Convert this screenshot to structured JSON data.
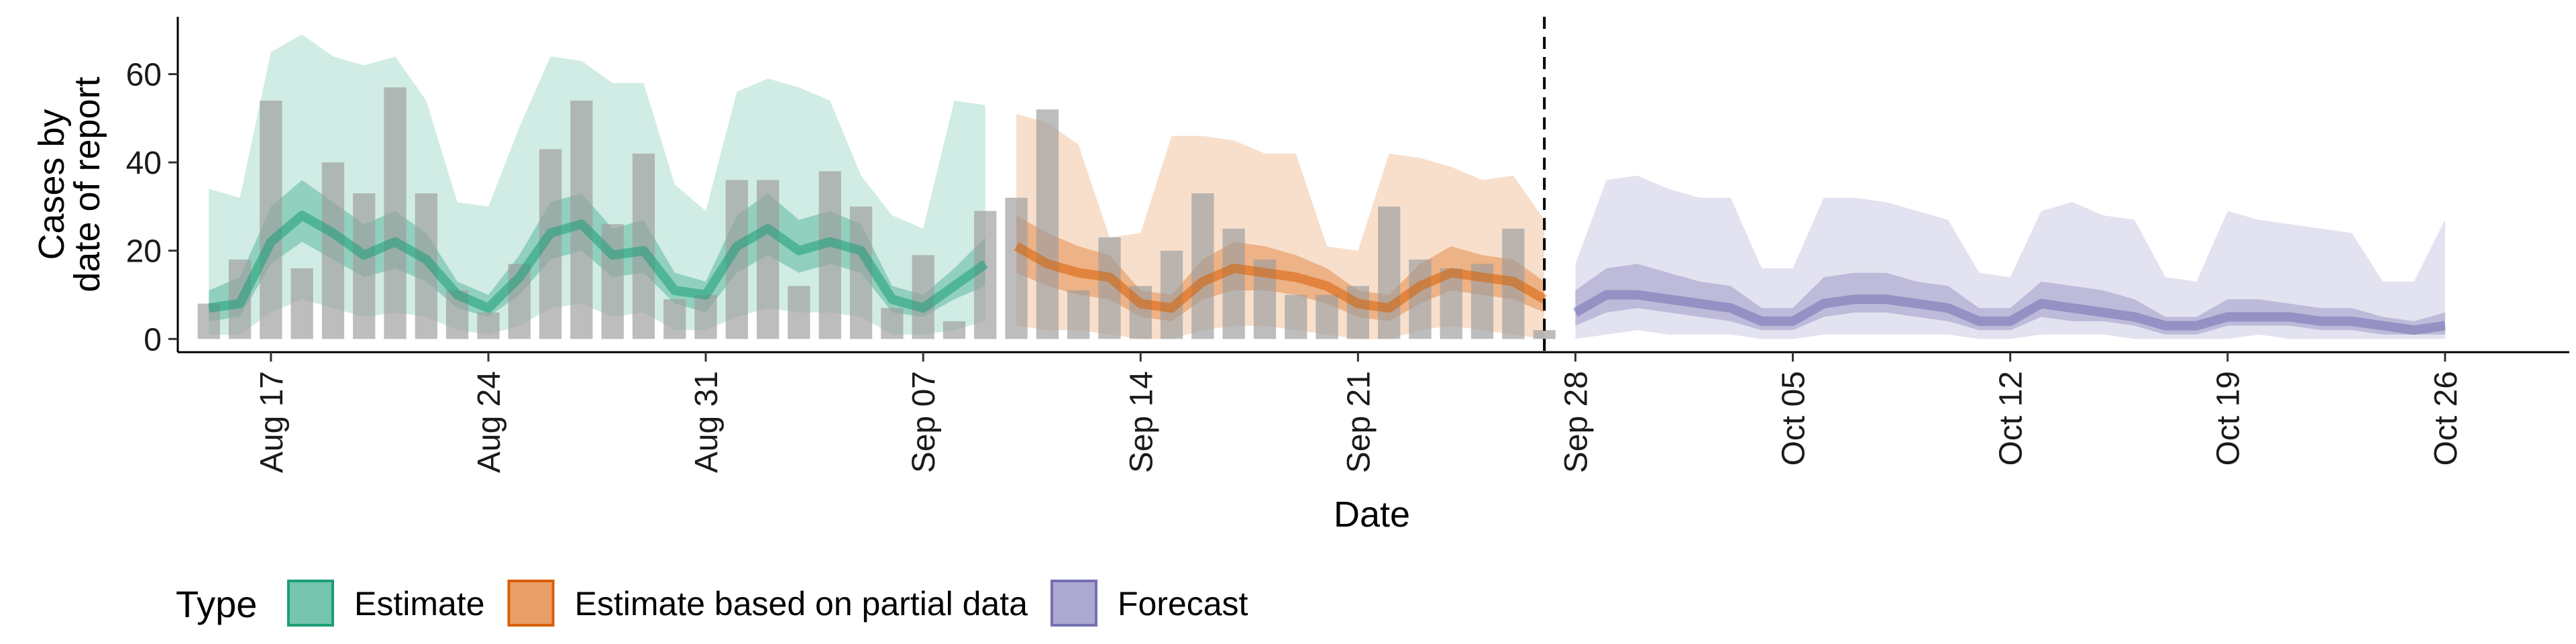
{
  "chart_data": {
    "type": "area",
    "ylabel_lines": [
      "Cases by",
      "date of report"
    ],
    "xlabel": "Date",
    "ylim": [
      -3,
      73
    ],
    "yticks": [
      0,
      20,
      40,
      60
    ],
    "x_start": "2020-08-14",
    "x_end": "2020-10-30",
    "xticks": [
      {
        "date": "2020-08-17",
        "label": "Aug 17"
      },
      {
        "date": "2020-08-24",
        "label": "Aug 24"
      },
      {
        "date": "2020-08-31",
        "label": "Aug 31"
      },
      {
        "date": "2020-09-07",
        "label": "Sep 07"
      },
      {
        "date": "2020-09-14",
        "label": "Sep 14"
      },
      {
        "date": "2020-09-21",
        "label": "Sep 21"
      },
      {
        "date": "2020-09-28",
        "label": "Sep 28"
      },
      {
        "date": "2020-10-05",
        "label": "Oct 05"
      },
      {
        "date": "2020-10-12",
        "label": "Oct 12"
      },
      {
        "date": "2020-10-19",
        "label": "Oct 19"
      },
      {
        "date": "2020-10-26",
        "label": "Oct 26"
      }
    ],
    "forecast_date": "2020-09-27",
    "bar_color": "#9e9e9e",
    "bars": {
      "start_date": "2020-08-15",
      "values": [
        8,
        18,
        54,
        16,
        40,
        33,
        57,
        33,
        11,
        6,
        17,
        43,
        54,
        26,
        42,
        9,
        10,
        36,
        36,
        12,
        38,
        30,
        7,
        19,
        4,
        29,
        32,
        52,
        11,
        23,
        12,
        20,
        33,
        25,
        18,
        10,
        10,
        12,
        30,
        18,
        16,
        17,
        25,
        2
      ]
    },
    "series": [
      {
        "name": "Estimate",
        "color": "#1b9e77",
        "start_date": "2020-08-15",
        "median": [
          7,
          8,
          22,
          28,
          24,
          19,
          22,
          18,
          10,
          7,
          14,
          24,
          26,
          19,
          20,
          11,
          10,
          21,
          25,
          20,
          22,
          20,
          9,
          7,
          12,
          17
        ],
        "lower50": [
          4,
          5,
          17,
          22,
          18,
          14,
          16,
          13,
          7,
          5,
          10,
          18,
          20,
          14,
          15,
          8,
          6,
          15,
          19,
          15,
          17,
          15,
          6,
          5,
          9,
          12
        ],
        "upper50": [
          11,
          14,
          30,
          36,
          31,
          26,
          29,
          24,
          13,
          10,
          19,
          31,
          33,
          25,
          27,
          15,
          13,
          28,
          33,
          27,
          29,
          26,
          12,
          10,
          16,
          23
        ],
        "lower90": [
          1,
          1,
          6,
          9,
          7,
          5,
          6,
          5,
          2,
          1,
          3,
          7,
          8,
          5,
          6,
          2,
          2,
          5,
          7,
          6,
          6,
          5,
          1,
          1,
          2,
          4
        ],
        "upper90": [
          34,
          32,
          65,
          69,
          64,
          62,
          64,
          54,
          31,
          30,
          48,
          64,
          63,
          58,
          58,
          35,
          29,
          56,
          59,
          57,
          54,
          37,
          28,
          25,
          54,
          53
        ]
      },
      {
        "name": "Estimate based on partial data",
        "color": "#d95f02",
        "start_date": "2020-09-10",
        "median": [
          21,
          17,
          15,
          14,
          8,
          7,
          13,
          16,
          15,
          14,
          12,
          8,
          7,
          12,
          15,
          14,
          13,
          9
        ],
        "lower50": [
          15,
          12,
          10,
          9,
          5,
          4,
          9,
          11,
          11,
          10,
          8,
          5,
          4,
          8,
          11,
          10,
          9,
          6
        ],
        "upper50": [
          28,
          24,
          21,
          19,
          11,
          10,
          18,
          22,
          21,
          19,
          16,
          11,
          10,
          17,
          21,
          19,
          18,
          13
        ],
        "lower90": [
          3,
          2,
          2,
          1,
          0,
          0,
          2,
          3,
          3,
          2,
          1,
          0,
          0,
          2,
          3,
          2,
          1,
          0
        ],
        "upper90": [
          51,
          49,
          44,
          23,
          24,
          46,
          46,
          45,
          42,
          42,
          21,
          20,
          42,
          41,
          39,
          36,
          37,
          27
        ]
      },
      {
        "name": "Forecast",
        "color": "#7570b3",
        "start_date": "2020-09-28",
        "median": [
          6,
          10,
          10,
          9,
          8,
          7,
          4,
          4,
          8,
          9,
          9,
          8,
          7,
          4,
          4,
          8,
          7,
          6,
          5,
          3,
          3,
          5,
          5,
          5,
          4,
          4,
          3,
          2,
          3
        ],
        "lower50": [
          3,
          6,
          7,
          6,
          5,
          4,
          2,
          2,
          5,
          6,
          6,
          5,
          4,
          2,
          2,
          5,
          4,
          4,
          3,
          1,
          1,
          3,
          3,
          3,
          2,
          2,
          1,
          1,
          1
        ],
        "upper50": [
          11,
          16,
          17,
          15,
          13,
          12,
          7,
          7,
          14,
          15,
          15,
          13,
          12,
          7,
          7,
          13,
          12,
          11,
          9,
          5,
          5,
          9,
          9,
          8,
          7,
          7,
          5,
          4,
          6
        ],
        "lower90": [
          0,
          1,
          2,
          1,
          1,
          1,
          0,
          0,
          1,
          1,
          1,
          1,
          1,
          0,
          0,
          1,
          1,
          1,
          0,
          0,
          0,
          0,
          1,
          0,
          0,
          0,
          0,
          0,
          0
        ],
        "upper90": [
          17,
          36,
          37,
          34,
          32,
          32,
          16,
          16,
          32,
          32,
          31,
          29,
          27,
          15,
          14,
          29,
          31,
          28,
          27,
          14,
          13,
          29,
          27,
          26,
          25,
          24,
          13,
          13,
          27
        ]
      }
    ],
    "legend": {
      "title": "Type",
      "position": "bottom-left",
      "items": [
        {
          "label": "Estimate",
          "color": "#1b9e77"
        },
        {
          "label": "Estimate based on partial data",
          "color": "#d95f02"
        },
        {
          "label": "Forecast",
          "color": "#7570b3"
        }
      ]
    }
  }
}
